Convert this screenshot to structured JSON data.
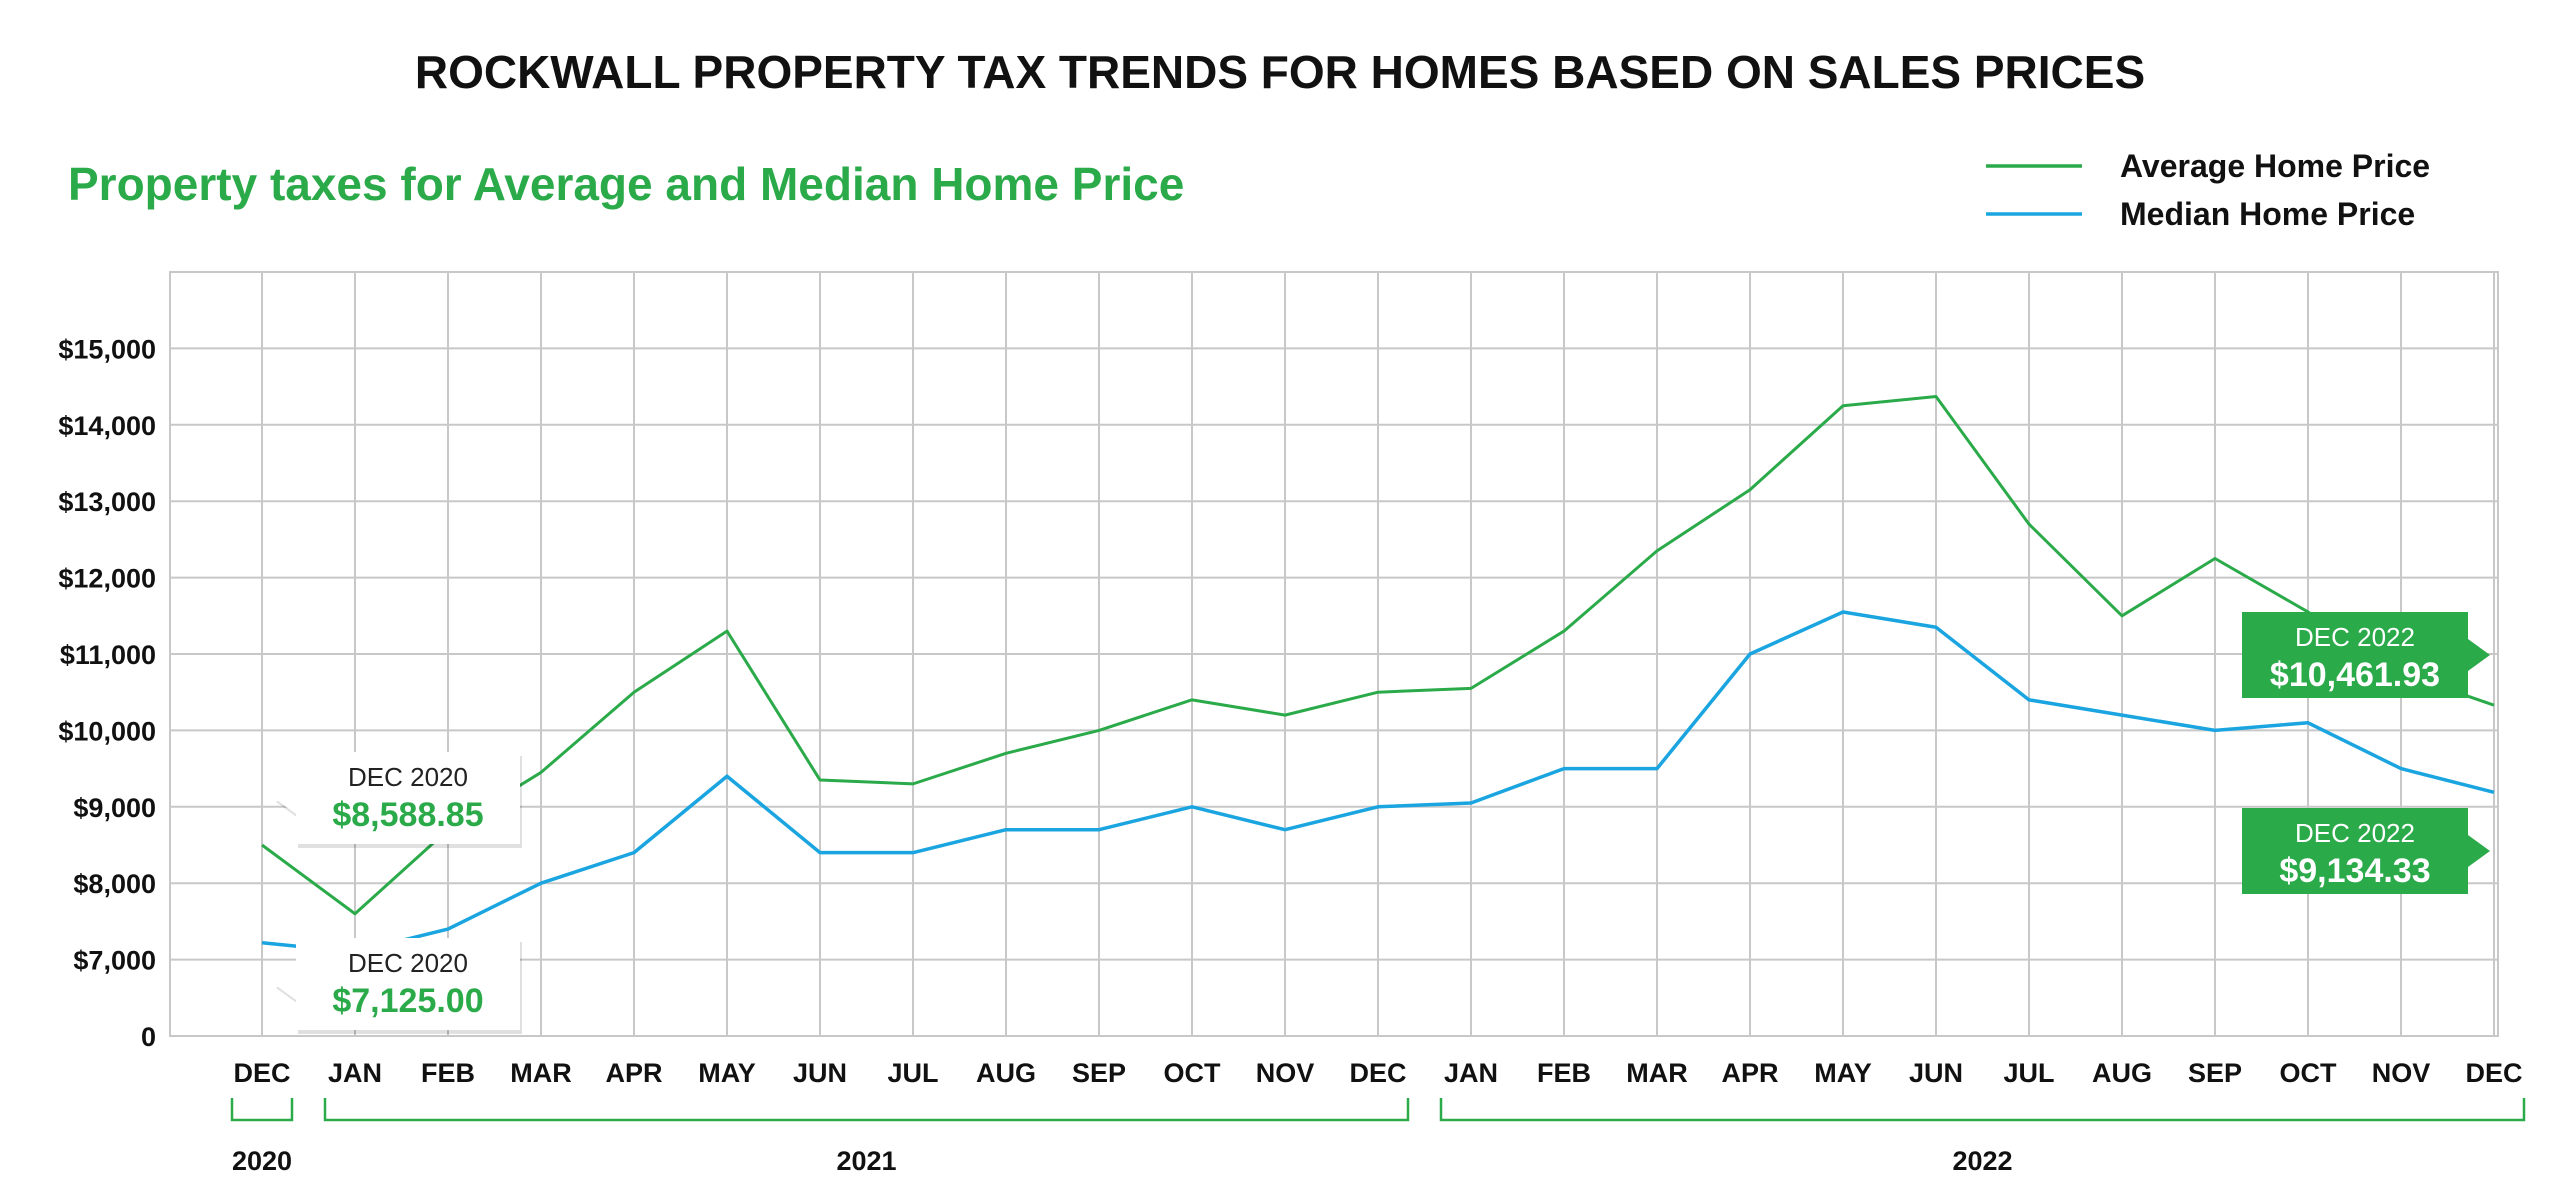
{
  "chart_data": {
    "type": "line",
    "title": "ROCKWALL PROPERTY TAX TRENDS FOR HOMES BASED ON SALES PRICES",
    "subtitle": "Property taxes for Average and Median Home Price",
    "categories": [
      "DEC",
      "JAN",
      "FEB",
      "MAR",
      "APR",
      "MAY",
      "JUN",
      "JUL",
      "AUG",
      "SEP",
      "OCT",
      "NOV",
      "DEC",
      "JAN",
      "FEB",
      "MAR",
      "APR",
      "MAY",
      "JUN",
      "JUL",
      "AUG",
      "SEP",
      "OCT",
      "NOV",
      "DEC"
    ],
    "year_groups": [
      {
        "label": "2020",
        "start": 0,
        "end": 0
      },
      {
        "label": "2021",
        "start": 1,
        "end": 12
      },
      {
        "label": "2022",
        "start": 13,
        "end": 24
      }
    ],
    "y_ticks": [
      {
        "value": 0,
        "label": "0"
      },
      {
        "value": 7000,
        "label": "$7,000"
      },
      {
        "value": 8000,
        "label": "$8,000"
      },
      {
        "value": 9000,
        "label": "$9,000"
      },
      {
        "value": 10000,
        "label": "$10,000"
      },
      {
        "value": 11000,
        "label": "$11,000"
      },
      {
        "value": 12000,
        "label": "$12,000"
      },
      {
        "value": 13000,
        "label": "$13,000"
      },
      {
        "value": 14000,
        "label": "$14,000"
      },
      {
        "value": 15000,
        "label": "$15,000"
      }
    ],
    "axis_break": {
      "zero_at": 6000
    },
    "ylim": [
      6000,
      16000
    ],
    "grid": true,
    "legend_position": "top-right",
    "series": [
      {
        "name": "Average Home Price",
        "color": "#2BAA4A",
        "values": [
          8500,
          7600,
          8700,
          9450,
          10500,
          11300,
          9350,
          9300,
          9700,
          10000,
          10400,
          10200,
          10500,
          10550,
          11300,
          12350,
          13150,
          14250,
          14370,
          12700,
          11500,
          12250,
          11550,
          10750,
          10330
        ]
      },
      {
        "name": "Median Home Price",
        "color": "#1BA5E0",
        "values": [
          7220,
          7100,
          7400,
          8000,
          8400,
          9400,
          8400,
          8400,
          8700,
          8700,
          9000,
          8700,
          9000,
          9050,
          9500,
          9500,
          11000,
          11550,
          11350,
          10400,
          10200,
          10000,
          10100,
          9500,
          9190
        ]
      }
    ],
    "annotations": [
      {
        "label": "DEC 2020",
        "value": "$8,588.85",
        "series": 0,
        "index": 0,
        "style": "white"
      },
      {
        "label": "DEC 2020",
        "value": "$7,125.00",
        "series": 1,
        "index": 0,
        "style": "white"
      },
      {
        "label": "DEC 2022",
        "value": "$10,461.93",
        "series": 0,
        "index": 24,
        "style": "green"
      },
      {
        "label": "DEC 2022",
        "value": "$9,134.33",
        "series": 1,
        "index": 24,
        "style": "green"
      }
    ],
    "colors": {
      "accent_green": "#2BAA4A",
      "median_blue": "#1BA5E0",
      "grid": "#C8C8C8",
      "text": "#111111"
    }
  }
}
